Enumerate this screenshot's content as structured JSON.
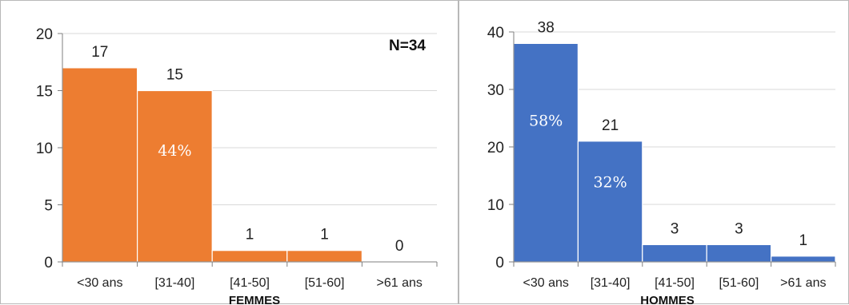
{
  "chart_data": [
    {
      "type": "bar",
      "categories": [
        "<30 ans",
        "[31-40]",
        "[41-50]",
        "[51-60]",
        ">61 ans"
      ],
      "values": [
        17,
        15,
        1,
        1,
        0
      ],
      "ylim": [
        0,
        20
      ],
      "yticks": [
        0,
        5,
        10,
        15,
        20
      ],
      "xlabel": "FEMMES",
      "annotation": "N=34",
      "percent_labels": [
        "",
        "44%",
        "",
        "",
        ""
      ],
      "color": "#ED7D31",
      "grid": true
    },
    {
      "type": "bar",
      "categories": [
        "<30 ans",
        "[31-40]",
        "[41-50]",
        "[51-60]",
        ">61 ans"
      ],
      "values": [
        38,
        21,
        3,
        3,
        1
      ],
      "ylim": [
        0,
        40
      ],
      "yticks": [
        0,
        10,
        20,
        30,
        40
      ],
      "xlabel": "HOMMES",
      "percent_labels": [
        "58%",
        "32%",
        "",
        "",
        ""
      ],
      "color": "#4472C4",
      "grid": true
    }
  ]
}
